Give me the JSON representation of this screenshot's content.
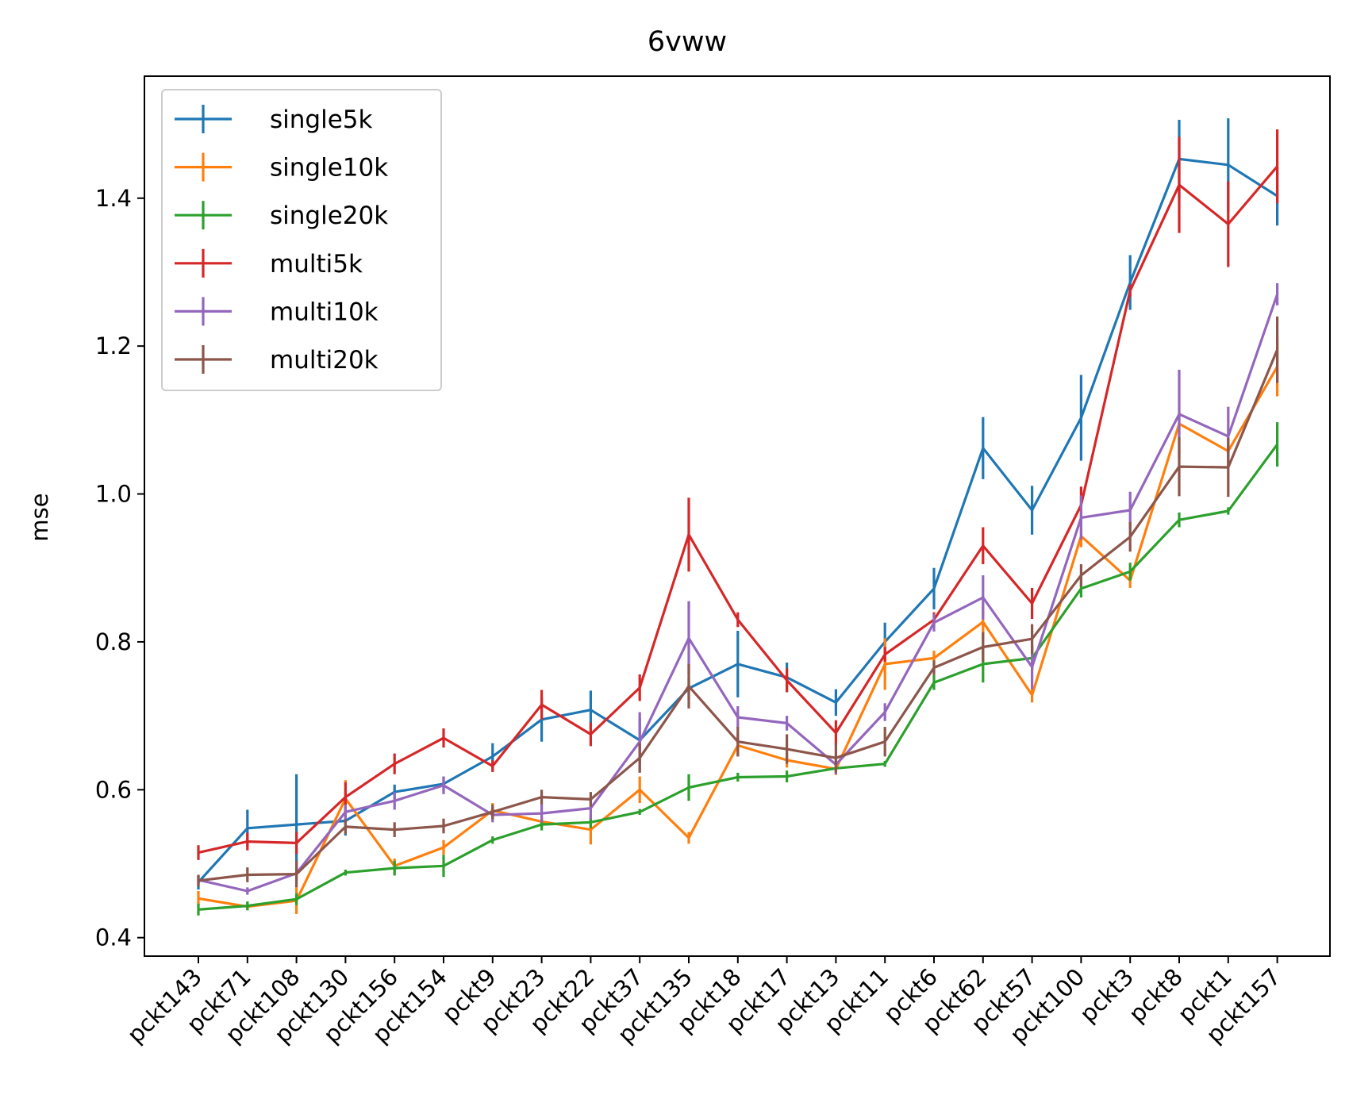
{
  "chart_data": {
    "type": "line",
    "title": "6vww",
    "xlabel": "",
    "ylabel": "mse",
    "ylim": [
      0.375,
      1.565
    ],
    "yticks": [
      0.4,
      0.6,
      0.8,
      1.0,
      1.2,
      1.4
    ],
    "ytick_labels": [
      "0.4",
      "0.6",
      "0.8",
      "1.0",
      "1.2",
      "1.4"
    ],
    "grid": false,
    "legend_position": "upper-left",
    "error_bars": true,
    "categories": [
      "pckt143",
      "pckt71",
      "pckt108",
      "pckt130",
      "pckt156",
      "pckt154",
      "pckt9",
      "pckt23",
      "pckt22",
      "pckt37",
      "pckt135",
      "pckt18",
      "pckt17",
      "pckt13",
      "pckt11",
      "pckt6",
      "pckt62",
      "pckt57",
      "pckt100",
      "pckt3",
      "pckt8",
      "pckt1",
      "pckt157"
    ],
    "series": [
      {
        "name": "single5k",
        "color": "#1f77b4",
        "values": [
          0.475,
          0.548,
          0.553,
          0.558,
          0.597,
          0.608,
          0.645,
          0.695,
          0.708,
          0.667,
          0.737,
          0.77,
          0.752,
          0.718,
          0.8,
          0.872,
          1.062,
          0.978,
          1.103,
          1.286,
          1.453,
          1.445,
          1.403
        ],
        "errors": [
          0.01,
          0.025,
          0.068,
          0.02,
          0.01,
          0.01,
          0.018,
          0.03,
          0.026,
          0.03,
          0.015,
          0.045,
          0.02,
          0.018,
          0.026,
          0.028,
          0.042,
          0.033,
          0.058,
          0.037,
          0.053,
          0.063,
          0.04
        ]
      },
      {
        "name": "single10k",
        "color": "#ff7f0e",
        "values": [
          0.453,
          0.442,
          0.45,
          0.588,
          0.497,
          0.522,
          0.572,
          0.557,
          0.546,
          0.6,
          0.535,
          0.66,
          0.64,
          0.628,
          0.77,
          0.778,
          0.827,
          0.728,
          0.943,
          0.883,
          1.095,
          1.058,
          1.172
        ],
        "errors": [
          0.01,
          0.005,
          0.018,
          0.025,
          0.01,
          0.01,
          0.01,
          0.008,
          0.02,
          0.018,
          0.008,
          0.015,
          0.01,
          0.008,
          0.035,
          0.01,
          0.025,
          0.01,
          0.015,
          0.01,
          0.015,
          0.01,
          0.04
        ]
      },
      {
        "name": "single20k",
        "color": "#2ca02c",
        "values": [
          0.438,
          0.443,
          0.452,
          0.488,
          0.494,
          0.497,
          0.532,
          0.553,
          0.556,
          0.57,
          0.603,
          0.617,
          0.618,
          0.629,
          0.635,
          0.745,
          0.77,
          0.778,
          0.872,
          0.895,
          0.965,
          0.977,
          1.067
        ],
        "errors": [
          0.008,
          0.006,
          0.008,
          0.004,
          0.01,
          0.015,
          0.005,
          0.008,
          0.008,
          0.004,
          0.018,
          0.006,
          0.008,
          0.004,
          0.004,
          0.01,
          0.025,
          0.016,
          0.012,
          0.012,
          0.01,
          0.005,
          0.03
        ]
      },
      {
        "name": "multi5k",
        "color": "#d62728",
        "values": [
          0.515,
          0.53,
          0.528,
          0.59,
          0.635,
          0.67,
          0.632,
          0.715,
          0.675,
          0.738,
          0.945,
          0.83,
          0.748,
          0.677,
          0.783,
          0.83,
          0.93,
          0.852,
          0.985,
          1.275,
          1.418,
          1.365,
          1.443
        ],
        "errors": [
          0.01,
          0.012,
          0.015,
          0.02,
          0.014,
          0.013,
          0.008,
          0.02,
          0.016,
          0.018,
          0.05,
          0.01,
          0.016,
          0.017,
          0.01,
          0.01,
          0.025,
          0.021,
          0.025,
          0.008,
          0.065,
          0.058,
          0.05
        ]
      },
      {
        "name": "multi10k",
        "color": "#9467bd",
        "values": [
          0.478,
          0.463,
          0.487,
          0.57,
          0.585,
          0.606,
          0.566,
          0.568,
          0.575,
          0.665,
          0.805,
          0.698,
          0.69,
          0.634,
          0.705,
          0.826,
          0.86,
          0.766,
          0.968,
          0.978,
          1.108,
          1.078,
          1.27
        ],
        "errors": [
          0.006,
          0.005,
          0.01,
          0.01,
          0.012,
          0.012,
          0.01,
          0.012,
          0.015,
          0.04,
          0.05,
          0.015,
          0.01,
          0.013,
          0.012,
          0.012,
          0.03,
          0.03,
          0.03,
          0.025,
          0.06,
          0.04,
          0.015
        ]
      },
      {
        "name": "multi20k",
        "color": "#8c564b",
        "values": [
          0.477,
          0.485,
          0.486,
          0.55,
          0.546,
          0.551,
          0.57,
          0.59,
          0.587,
          0.643,
          0.74,
          0.665,
          0.655,
          0.643,
          0.665,
          0.765,
          0.793,
          0.804,
          0.89,
          0.942,
          1.037,
          1.036,
          1.195
        ],
        "errors": [
          0.008,
          0.01,
          0.018,
          0.01,
          0.01,
          0.01,
          0.01,
          0.01,
          0.01,
          0.02,
          0.03,
          0.02,
          0.02,
          0.02,
          0.02,
          0.01,
          0.02,
          0.02,
          0.015,
          0.02,
          0.04,
          0.04,
          0.045
        ]
      }
    ]
  }
}
